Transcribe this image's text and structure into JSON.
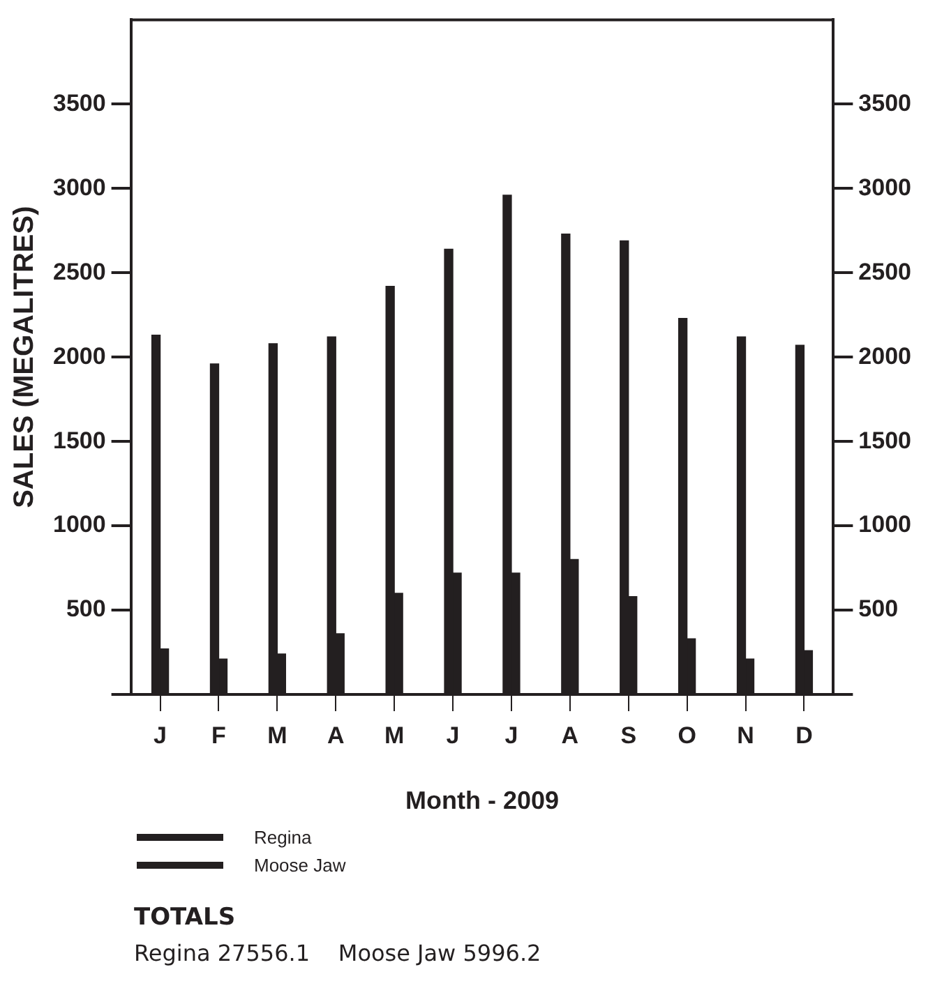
{
  "chart_data": {
    "type": "bar",
    "xlabel": "Month - 2009",
    "ylabel": "SALES (MEGALITRES)",
    "categories": [
      "J",
      "F",
      "M",
      "A",
      "M",
      "J",
      "J",
      "A",
      "S",
      "O",
      "N",
      "D"
    ],
    "series": [
      {
        "name": "Regina",
        "color": "#231f20",
        "values": [
          2130,
          1960,
          2080,
          2120,
          2420,
          2640,
          2960,
          2730,
          2690,
          2230,
          2120,
          2070
        ]
      },
      {
        "name": "Moose Jaw",
        "color": "#231f20",
        "values": [
          270,
          210,
          240,
          360,
          600,
          720,
          720,
          800,
          580,
          330,
          210,
          260
        ]
      }
    ],
    "ylim": [
      0,
      4000
    ],
    "yticks": [
      {
        "value": 0,
        "label": null
      },
      500,
      1000,
      1500,
      2000,
      2500,
      3000,
      3500
    ],
    "y2lim": [
      0,
      4000
    ],
    "y2ticks": [
      {
        "value": 0,
        "label": null
      },
      500,
      1000,
      1500,
      2000,
      2500,
      3000,
      3500
    ],
    "grid": false,
    "legend": "bottom",
    "annotations": [
      "TOTALS",
      "Regina 27556.1    Moose Jaw 5996.2"
    ]
  }
}
